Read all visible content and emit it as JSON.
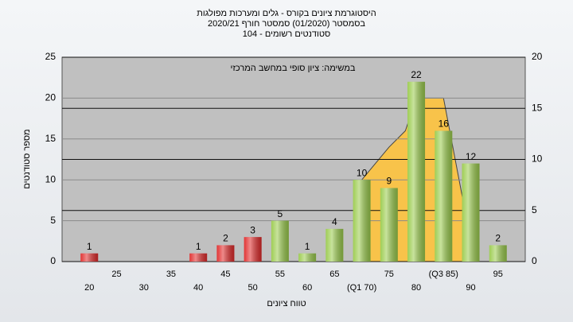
{
  "chart_data": {
    "type": "bar",
    "title": [
      "היסטוגרמת ציונים בקורס - גלים ומערכות מפולגות",
      "בסמסטר  (01/2020)  סמסטר חורף 2020/21",
      "סטודנטים רשומים - 104"
    ],
    "annotation": "במשימה: ציון סופי במחשב המרכזי",
    "y_label": "מספר סטודנטים",
    "x_label": "טווח ציונים",
    "categories": [
      "20",
      "25",
      "30",
      "35",
      "40",
      "45",
      "50",
      "55",
      "60",
      "65",
      "(Q1 70)",
      "75",
      "80",
      "(Q3 85)",
      "90",
      "95"
    ],
    "values": [
      1,
      0,
      0,
      0,
      1,
      2,
      3,
      5,
      1,
      4,
      10,
      9,
      22,
      16,
      12,
      2
    ],
    "bar_colors": [
      "#e02a2a",
      "#e02a2a",
      "#e02a2a",
      "#e02a2a",
      "#e02a2a",
      "#e02a2a",
      "#e02a2a",
      "#9acb4c",
      "#9acb4c",
      "#9acb4c",
      "#9acb4c",
      "#9acb4c",
      "#9acb4c",
      "#9acb4c",
      "#9acb4c",
      "#9acb4c"
    ],
    "area": {
      "x": [
        70,
        75,
        78,
        80,
        85,
        89
      ],
      "y": [
        10,
        14,
        16,
        20,
        20,
        6
      ],
      "color": "#f8c34a"
    },
    "ylim": [
      0,
      25
    ],
    "yticks": [
      0,
      5,
      10,
      15,
      20,
      25
    ],
    "y2lim": [
      0,
      20
    ],
    "y2ticks": [
      0,
      5,
      10,
      15,
      20
    ],
    "grid": true
  }
}
